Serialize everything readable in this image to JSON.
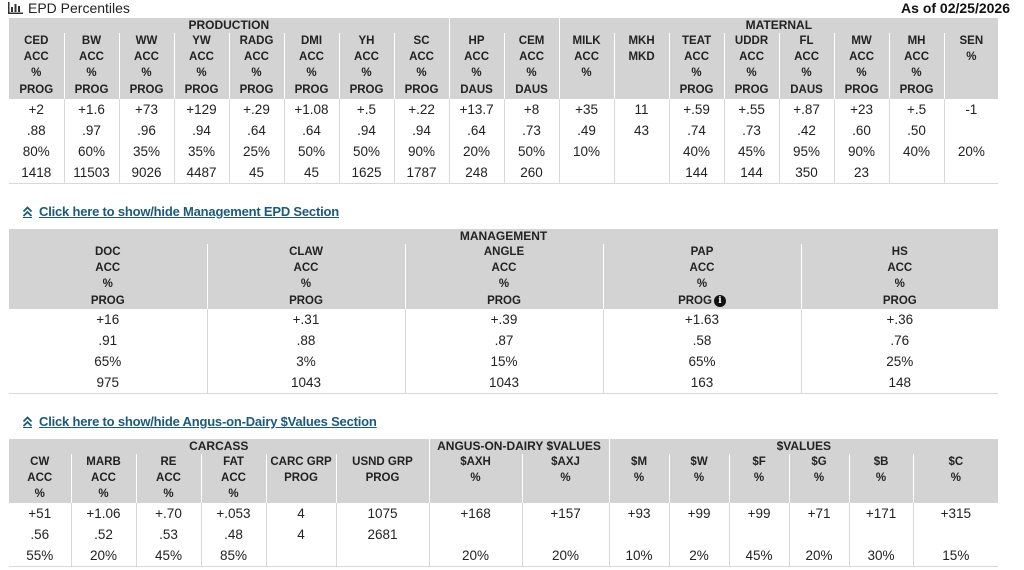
{
  "header": {
    "title": "EPD Percentiles",
    "as_of": "As of 02/25/2026",
    "icon": "bar-chart-icon"
  },
  "production_table": {
    "groups": [
      "PRODUCTION",
      "MATERNAL"
    ],
    "columns": [
      {
        "lines": [
          "CED",
          "ACC",
          "%",
          "PROG"
        ]
      },
      {
        "lines": [
          "BW",
          "ACC",
          "%",
          "PROG"
        ]
      },
      {
        "lines": [
          "WW",
          "ACC",
          "%",
          "PROG"
        ]
      },
      {
        "lines": [
          "YW",
          "ACC",
          "%",
          "PROG"
        ]
      },
      {
        "lines": [
          "RADG",
          "ACC",
          "%",
          "PROG"
        ]
      },
      {
        "lines": [
          "DMI",
          "ACC",
          "%",
          "PROG"
        ]
      },
      {
        "lines": [
          "YH",
          "ACC",
          "%",
          "PROG"
        ]
      },
      {
        "lines": [
          "SC",
          "ACC",
          "%",
          "PROG"
        ]
      },
      {
        "lines": [
          "HP",
          "ACC",
          "%",
          "DAUS"
        ]
      },
      {
        "lines": [
          "CEM",
          "ACC",
          "%",
          "DAUS"
        ]
      },
      {
        "lines": [
          "MILK",
          "ACC",
          "%",
          ""
        ]
      },
      {
        "lines": [
          "MKH",
          "MKD",
          "",
          ""
        ]
      },
      {
        "lines": [
          "TEAT",
          "ACC",
          "%",
          "PROG"
        ]
      },
      {
        "lines": [
          "UDDR",
          "ACC",
          "%",
          "PROG"
        ]
      },
      {
        "lines": [
          "FL",
          "ACC",
          "%",
          "DAUS"
        ]
      },
      {
        "lines": [
          "MW",
          "ACC",
          "%",
          "PROG"
        ]
      },
      {
        "lines": [
          "MH",
          "ACC",
          "%",
          "PROG"
        ]
      },
      {
        "lines": [
          "SEN",
          "",
          "%",
          ""
        ]
      }
    ],
    "rows": [
      [
        "+2",
        "+1.6",
        "+73",
        "+129",
        "+.29",
        "+1.08",
        "+.5",
        "+.22",
        "+13.7",
        "+8",
        "+35",
        "11",
        "+.59",
        "+.55",
        "+.87",
        "+23",
        "+.5",
        "-1"
      ],
      [
        ".88",
        ".97",
        ".96",
        ".94",
        ".64",
        ".64",
        ".94",
        ".94",
        ".64",
        ".73",
        ".49",
        "43",
        ".74",
        ".73",
        ".42",
        ".60",
        ".50",
        ""
      ],
      [
        "80%",
        "60%",
        "35%",
        "35%",
        "25%",
        "50%",
        "50%",
        "90%",
        "20%",
        "50%",
        "10%",
        "",
        "40%",
        "45%",
        "95%",
        "90%",
        "40%",
        "20%"
      ],
      [
        "1418",
        "11503",
        "9026",
        "4487",
        "45",
        "45",
        "1625",
        "1787",
        "248",
        "260",
        "",
        "",
        "144",
        "144",
        "350",
        "23",
        "",
        ""
      ]
    ]
  },
  "management_toggle": {
    "label": "Click here to show/hide Management EPD Section",
    "icon": "double-chevron-up-icon"
  },
  "management_table": {
    "group": "MANAGEMENT",
    "columns": [
      {
        "lines": [
          "DOC",
          "ACC",
          "%",
          "PROG"
        ]
      },
      {
        "lines": [
          "CLAW",
          "ACC",
          "%",
          "PROG"
        ]
      },
      {
        "lines": [
          "ANGLE",
          "ACC",
          "%",
          "PROG"
        ]
      },
      {
        "lines": [
          "PAP",
          "ACC",
          "%",
          "PROG"
        ],
        "info": true
      },
      {
        "lines": [
          "HS",
          "ACC",
          "%",
          "PROG"
        ]
      }
    ],
    "info_icon": "info-icon",
    "rows": [
      [
        "+16",
        "+.31",
        "+.39",
        "+1.63",
        "+.36"
      ],
      [
        ".91",
        ".88",
        ".87",
        ".58",
        ".76"
      ],
      [
        "65%",
        "3%",
        "15%",
        "65%",
        "25%"
      ],
      [
        "975",
        "1043",
        "1043",
        "163",
        "148"
      ]
    ]
  },
  "dairy_toggle": {
    "label": "Click here to show/hide Angus-on-Dairy $Values Section",
    "icon": "double-chevron-up-icon"
  },
  "carcass_table": {
    "groups": [
      "CARCASS",
      "ANGUS-ON-DAIRY $VALUES",
      "$VALUES"
    ],
    "columns": [
      {
        "lines": [
          "CW",
          "ACC",
          "%",
          ""
        ]
      },
      {
        "lines": [
          "MARB",
          "ACC",
          "%",
          ""
        ]
      },
      {
        "lines": [
          "RE",
          "ACC",
          "%",
          ""
        ]
      },
      {
        "lines": [
          "FAT",
          "ACC",
          "%",
          ""
        ]
      },
      {
        "lines": [
          "CARC GRP",
          "PROG",
          "",
          ""
        ]
      },
      {
        "lines": [
          "USND GRP",
          "PROG",
          "",
          ""
        ]
      },
      {
        "lines": [
          "$AXH",
          "",
          "%",
          ""
        ]
      },
      {
        "lines": [
          "$AXJ",
          "",
          "%",
          ""
        ]
      },
      {
        "lines": [
          "$M",
          "",
          "%",
          ""
        ]
      },
      {
        "lines": [
          "$W",
          "",
          "%",
          ""
        ]
      },
      {
        "lines": [
          "$F",
          "",
          "%",
          ""
        ]
      },
      {
        "lines": [
          "$G",
          "",
          "%",
          ""
        ]
      },
      {
        "lines": [
          "$B",
          "",
          "%",
          ""
        ]
      },
      {
        "lines": [
          "$C",
          "",
          "%",
          ""
        ]
      }
    ],
    "rows": [
      [
        "+51",
        "+1.06",
        "+.70",
        "+.053",
        "4",
        "1075",
        "+168",
        "+157",
        "+93",
        "+99",
        "+99",
        "+71",
        "+171",
        "+315"
      ],
      [
        ".56",
        ".52",
        ".53",
        ".48",
        "4",
        "2681",
        "",
        "",
        "",
        "",
        "",
        "",
        "",
        ""
      ],
      [
        "55%",
        "20%",
        "45%",
        "85%",
        "",
        "",
        "20%",
        "20%",
        "10%",
        "2%",
        "45%",
        "20%",
        "30%",
        "15%"
      ]
    ]
  }
}
